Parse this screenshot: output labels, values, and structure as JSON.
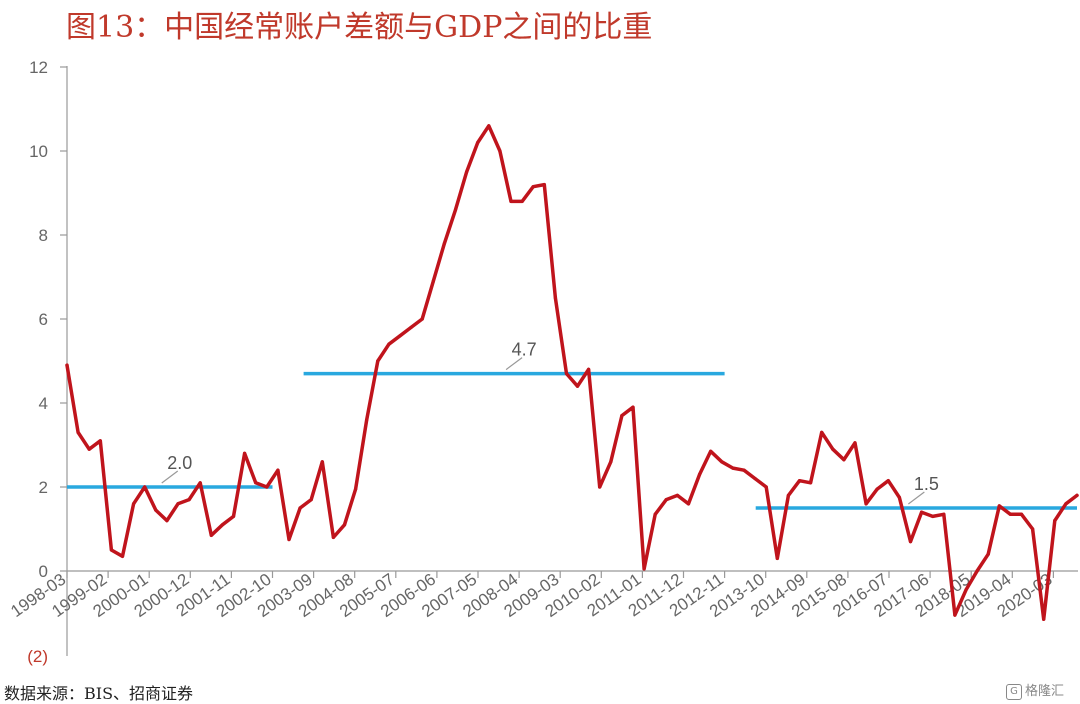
{
  "title": "图13：中国经常账户差额与GDP之间的比重",
  "source": "数据来源：BIS、招商证券",
  "watermark": {
    "icon": "G",
    "text": "格隆汇"
  },
  "chart_data": {
    "type": "line",
    "title": "图13：中国经常账户差额与GDP之间的比重",
    "xlabel": "",
    "ylabel": "",
    "ylim": [
      -2,
      12
    ],
    "y_ticks": [
      0,
      2,
      4,
      6,
      8,
      10,
      12
    ],
    "y_tick_labels": [
      "0",
      "2",
      "4",
      "6",
      "8",
      "10",
      "12"
    ],
    "negative_tick_label": "(2)",
    "x_tick_labels": [
      "1998-03",
      "1999-02",
      "2000-01",
      "2000-12",
      "2001-11",
      "2002-10",
      "2003-09",
      "2004-08",
      "2005-07",
      "2006-06",
      "2007-05",
      "2008-04",
      "2009-03",
      "2010-02",
      "2011-01",
      "2011-12",
      "2012-11",
      "2013-10",
      "2014-09",
      "2015-08",
      "2016-07",
      "2017-06",
      "2018-05",
      "2019-04",
      "2020-03"
    ],
    "grid": false,
    "colors": {
      "series": "#c0141c",
      "average": "#29a8df",
      "axis": "#999999"
    },
    "series": [
      {
        "values": [
          4.9,
          3.3,
          2.9,
          3.1,
          0.5,
          0.35,
          1.6,
          2.0,
          1.45,
          1.2,
          1.6,
          1.7,
          2.1,
          0.85,
          1.1,
          1.3,
          2.8,
          2.1,
          2.0,
          2.4,
          0.75,
          1.5,
          1.7,
          2.6,
          0.8,
          1.1,
          1.95,
          3.6,
          5.0,
          5.4,
          5.6,
          5.8,
          6.0,
          6.9,
          7.8,
          8.6,
          9.5,
          10.2,
          10.6,
          10.0,
          8.8,
          8.8,
          9.15,
          9.2,
          6.5,
          4.7,
          4.4,
          4.8,
          2.0,
          2.6,
          3.7,
          3.9,
          0.05,
          1.35,
          1.7,
          1.8,
          1.6,
          2.3,
          2.85,
          2.6,
          2.45,
          2.4,
          2.2,
          2.0,
          0.3,
          1.8,
          2.15,
          2.1,
          3.3,
          2.9,
          2.65,
          3.05,
          1.6,
          1.95,
          2.15,
          1.75,
          0.7,
          1.4,
          1.3,
          1.35,
          -1.05,
          -0.45,
          0.0,
          0.4,
          1.55,
          1.35,
          1.35,
          1.0,
          -1.15,
          1.2,
          1.6,
          1.8
        ]
      }
    ],
    "averages": [
      {
        "label": "2.0",
        "value": 2.0,
        "from": "1998-03",
        "to": "2002-10"
      },
      {
        "label": "4.7",
        "value": 4.7,
        "from": "2003-09",
        "to": "2012-11"
      },
      {
        "label": "1.5",
        "value": 1.5,
        "from": "2013-10",
        "to": "2020-03"
      }
    ]
  }
}
